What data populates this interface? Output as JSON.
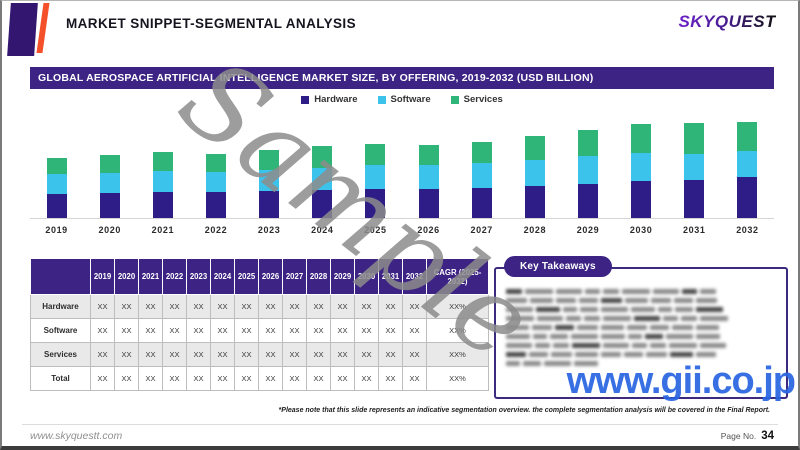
{
  "header": {
    "title": "MARKET SNIPPET-SEGMENTAL ANALYSIS",
    "logo": "SKYQUEST"
  },
  "chart": {
    "title": "GLOBAL AEROSPACE ARTIFICIAL INTELLIGENCE MARKET SIZE,  BY OFFERING, 2019-2032 (USD BILLION)"
  },
  "chart_data": {
    "type": "bar",
    "stacked": true,
    "title": "Global Aerospace Artificial Intelligence Market Size, By Offering, 2019-2032 (USD Billion)",
    "xlabel": "",
    "ylabel": "",
    "unit": "USD Billion (numeric values masked as XX in source; series values are relative heights estimated from pixels)",
    "legend_position": "top",
    "grid": false,
    "categories": [
      "2019",
      "2020",
      "2021",
      "2022",
      "2023",
      "2024",
      "2025",
      "2026",
      "2027",
      "2028",
      "2029",
      "2030",
      "2031",
      "2032"
    ],
    "series": [
      {
        "name": "Hardware",
        "color": "#2e1d86",
        "values": [
          21,
          22,
          23,
          23,
          24,
          25,
          26,
          26,
          27,
          29,
          30,
          33,
          34,
          37
        ]
      },
      {
        "name": "Software",
        "color": "#3cc3ec",
        "values": [
          18,
          18,
          19,
          18,
          19,
          20,
          21,
          21,
          22,
          23,
          25,
          25,
          23,
          23
        ]
      },
      {
        "name": "Services",
        "color": "#2eb577",
        "values": [
          15,
          16,
          17,
          16,
          18,
          19,
          19,
          18,
          19,
          21,
          24,
          26,
          28,
          26
        ]
      }
    ]
  },
  "table": {
    "columns": [
      "",
      "2019",
      "2020",
      "2021",
      "2022",
      "2023",
      "2024",
      "2025",
      "2026",
      "2027",
      "2028",
      "2029",
      "2030",
      "2031",
      "2032",
      "CAGR (2025-2032)"
    ],
    "rows": [
      {
        "label": "Hardware",
        "values": [
          "XX",
          "XX",
          "XX",
          "XX",
          "XX",
          "XX",
          "XX",
          "XX",
          "XX",
          "XX",
          "XX",
          "XX",
          "XX",
          "XX"
        ],
        "cagr": "XX%"
      },
      {
        "label": "Software",
        "values": [
          "XX",
          "XX",
          "XX",
          "XX",
          "XX",
          "XX",
          "XX",
          "XX",
          "XX",
          "XX",
          "XX",
          "XX",
          "XX",
          "XX"
        ],
        "cagr": "XX%"
      },
      {
        "label": "Services",
        "values": [
          "XX",
          "XX",
          "XX",
          "XX",
          "XX",
          "XX",
          "XX",
          "XX",
          "XX",
          "XX",
          "XX",
          "XX",
          "XX",
          "XX"
        ],
        "cagr": "XX%"
      },
      {
        "label": "Total",
        "values": [
          "XX",
          "XX",
          "XX",
          "XX",
          "XX",
          "XX",
          "XX",
          "XX",
          "XX",
          "XX",
          "XX",
          "XX",
          "XX",
          "XX"
        ],
        "cagr": "XX%"
      }
    ]
  },
  "takeaways": {
    "label": "Key Takeaways",
    "redacted": true,
    "redacted_line_count": 9
  },
  "watermarks": {
    "sample": "Sample",
    "site": "www.gii.co.jp"
  },
  "footnote": "*Please note that this slide represents an indicative segmentation overview. the complete segmentation analysis will be covered in the Final Report.",
  "footer": {
    "left": "www.skyquestt.com",
    "page_label": "Page No.",
    "page_number": "34"
  },
  "colors": {
    "primary_purple": "#3d2484",
    "decor_purple": "#331670",
    "decor_orange": "#f4502a",
    "hardware": "#2e1d86",
    "software": "#3cc3ec",
    "services": "#2eb577",
    "watermark_gray": "#8c8c8c",
    "watermark_blue": "#2966e3"
  }
}
